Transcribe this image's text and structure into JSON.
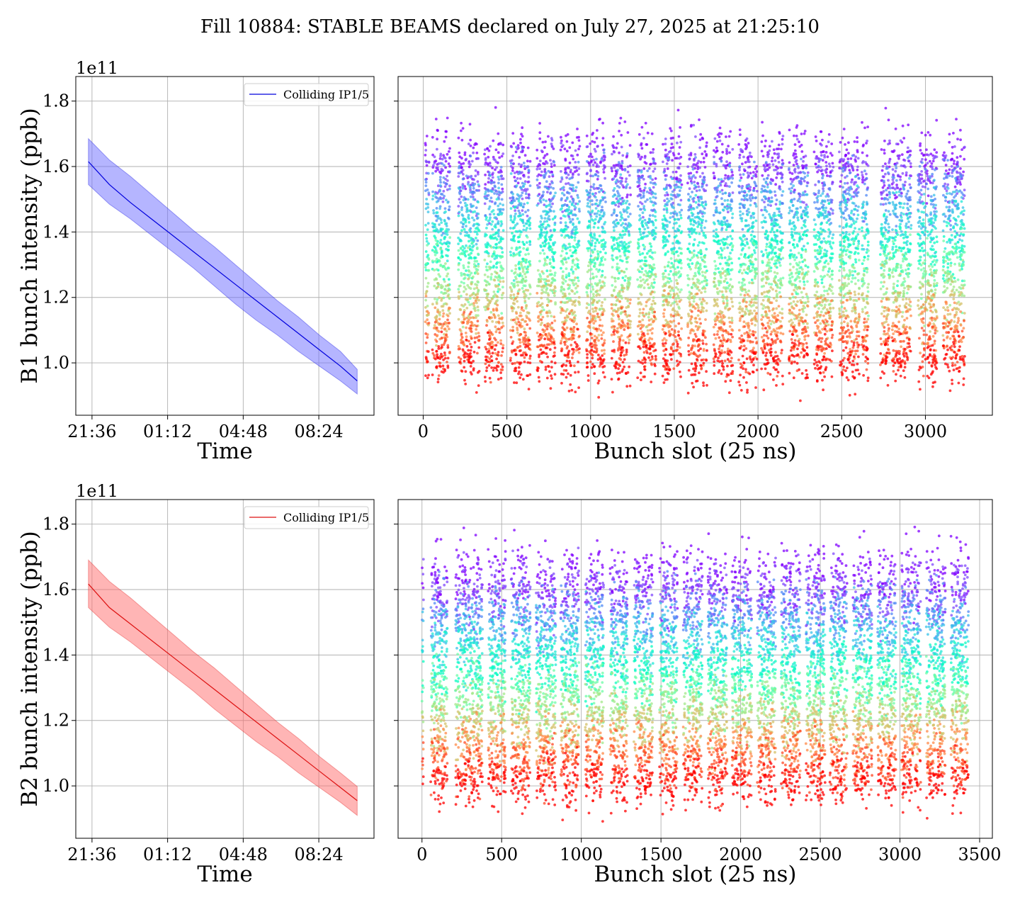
{
  "figure_title": "Fill 10884: STABLE BEAMS declared on July 27, 2025 at 21:25:10",
  "colors": {
    "b1_line": "#0000dd",
    "b1_band": "#6b6bff",
    "b2_line": "#dd1111",
    "b2_band": "#ff6b6b",
    "grid": "#b0b0b0"
  },
  "chart_data": [
    {
      "id": "b1_time",
      "type": "line",
      "title": "",
      "xlabel": "Time",
      "ylabel": "B1 bunch intensity (ppb)",
      "offset_text": "1e11",
      "x_tick_labels": [
        "21:36",
        "01:12",
        "04:48",
        "08:24"
      ],
      "x_ticks_hours": [
        0.172,
        3.772,
        7.372,
        10.972
      ],
      "xlim_hours": [
        -0.6,
        13.6
      ],
      "ylim": [
        0.84,
        1.875
      ],
      "y_ticks": [
        1.0,
        1.2,
        1.4,
        1.6,
        1.8
      ],
      "y_tick_labels": [
        "1.0",
        "1.2",
        "1.4",
        "1.6",
        "1.8"
      ],
      "legend": "Colliding IP1/5",
      "series": [
        {
          "name": "Colliding IP1/5",
          "x_hours": [
            0,
            1,
            2,
            3,
            4,
            5,
            6,
            7,
            8,
            9,
            10,
            11,
            12,
            12.8
          ],
          "mean": [
            1.615,
            1.545,
            1.49,
            1.44,
            1.39,
            1.34,
            1.29,
            1.24,
            1.19,
            1.14,
            1.09,
            1.04,
            0.99,
            0.945
          ],
          "upper": [
            1.685,
            1.62,
            1.57,
            1.515,
            1.46,
            1.405,
            1.355,
            1.3,
            1.245,
            1.19,
            1.14,
            1.085,
            1.035,
            0.98
          ],
          "lower": [
            1.545,
            1.485,
            1.44,
            1.39,
            1.34,
            1.29,
            1.235,
            1.18,
            1.13,
            1.085,
            1.035,
            0.99,
            0.945,
            0.905
          ]
        }
      ]
    },
    {
      "id": "b1_slots",
      "type": "scatter",
      "title": "",
      "xlabel": "Bunch slot (25 ns)",
      "ylabel": "",
      "xlim": [
        -150,
        3400
      ],
      "ylim": [
        0.84,
        1.875
      ],
      "x_ticks": [
        0,
        500,
        1000,
        1500,
        2000,
        2500,
        3000
      ],
      "x_tick_labels": [
        "0",
        "500",
        "1000",
        "1500",
        "2000",
        "2500",
        "3000"
      ],
      "y_ticks": [
        1.0,
        1.2,
        1.4,
        1.6,
        1.8
      ],
      "colormap": "rainbow (color encodes time: purple = start of fill, red = end)",
      "slot_groups": [
        [
          12,
          35
        ],
        [
          55,
          160
        ],
        [
          210,
          335
        ],
        [
          365,
          480
        ],
        [
          520,
          640
        ],
        [
          680,
          790
        ],
        [
          820,
          935
        ],
        [
          975,
          1090
        ],
        [
          1125,
          1240
        ],
        [
          1280,
          1390
        ],
        [
          1430,
          1545
        ],
        [
          1580,
          1695
        ],
        [
          1735,
          1850
        ],
        [
          1885,
          1995
        ],
        [
          2020,
          2150
        ],
        [
          2185,
          2300
        ],
        [
          2335,
          2450
        ],
        [
          2485,
          2605
        ],
        [
          2620,
          2660
        ],
        [
          2730,
          2790
        ],
        [
          2800,
          2915
        ],
        [
          2955,
          3070
        ],
        [
          3105,
          3235
        ]
      ],
      "intensity_start_range": [
        1.45,
        1.8
      ],
      "intensity_end_range": [
        0.9,
        1.1
      ]
    },
    {
      "id": "b2_time",
      "type": "line",
      "title": "",
      "xlabel": "Time",
      "ylabel": "B2 bunch intensity (ppb)",
      "offset_text": "1e11",
      "x_tick_labels": [
        "21:36",
        "01:12",
        "04:48",
        "08:24"
      ],
      "x_ticks_hours": [
        0.172,
        3.772,
        7.372,
        10.972
      ],
      "xlim_hours": [
        -0.6,
        13.6
      ],
      "ylim": [
        0.84,
        1.875
      ],
      "y_ticks": [
        1.0,
        1.2,
        1.4,
        1.6,
        1.8
      ],
      "y_tick_labels": [
        "1.0",
        "1.2",
        "1.4",
        "1.6",
        "1.8"
      ],
      "legend": "Colliding IP1/5",
      "series": [
        {
          "name": "Colliding IP1/5",
          "x_hours": [
            0,
            1,
            2,
            3,
            4,
            5,
            6,
            7,
            8,
            9,
            10,
            11,
            12,
            12.8
          ],
          "mean": [
            1.617,
            1.545,
            1.495,
            1.445,
            1.395,
            1.345,
            1.295,
            1.245,
            1.195,
            1.145,
            1.095,
            1.045,
            0.995,
            0.955
          ],
          "upper": [
            1.69,
            1.625,
            1.575,
            1.52,
            1.465,
            1.41,
            1.36,
            1.305,
            1.25,
            1.195,
            1.145,
            1.09,
            1.04,
            0.998
          ],
          "lower": [
            1.545,
            1.485,
            1.44,
            1.39,
            1.34,
            1.29,
            1.235,
            1.185,
            1.135,
            1.09,
            1.04,
            0.995,
            0.95,
            0.91
          ]
        }
      ]
    },
    {
      "id": "b2_slots",
      "type": "scatter",
      "title": "",
      "xlabel": "Bunch slot (25 ns)",
      "ylabel": "",
      "xlim": [
        -150,
        3580
      ],
      "ylim": [
        0.84,
        1.875
      ],
      "x_ticks": [
        0,
        500,
        1000,
        1500,
        2000,
        2500,
        3000,
        3500
      ],
      "x_tick_labels": [
        "0",
        "500",
        "1000",
        "1500",
        "2000",
        "2500",
        "3000",
        "3500"
      ],
      "y_ticks": [
        1.0,
        1.2,
        1.4,
        1.6,
        1.8
      ],
      "colormap": "rainbow (color encodes time: purple = start of fill, red = end)",
      "slot_groups": [
        [
          0,
          10
        ],
        [
          55,
          160
        ],
        [
          210,
          380
        ],
        [
          415,
          525
        ],
        [
          560,
          680
        ],
        [
          715,
          840
        ],
        [
          870,
          985
        ],
        [
          1025,
          1140
        ],
        [
          1180,
          1290
        ],
        [
          1330,
          1450
        ],
        [
          1490,
          1605
        ],
        [
          1640,
          1760
        ],
        [
          1795,
          1915
        ],
        [
          1945,
          2070
        ],
        [
          2105,
          2220
        ],
        [
          2255,
          2375
        ],
        [
          2410,
          2530
        ],
        [
          2560,
          2670
        ],
        [
          2705,
          2825
        ],
        [
          2860,
          2975
        ],
        [
          3010,
          3130
        ],
        [
          3165,
          3285
        ],
        [
          3320,
          3430
        ]
      ],
      "intensity_start_range": [
        1.45,
        1.82
      ],
      "intensity_end_range": [
        0.9,
        1.12
      ]
    }
  ]
}
